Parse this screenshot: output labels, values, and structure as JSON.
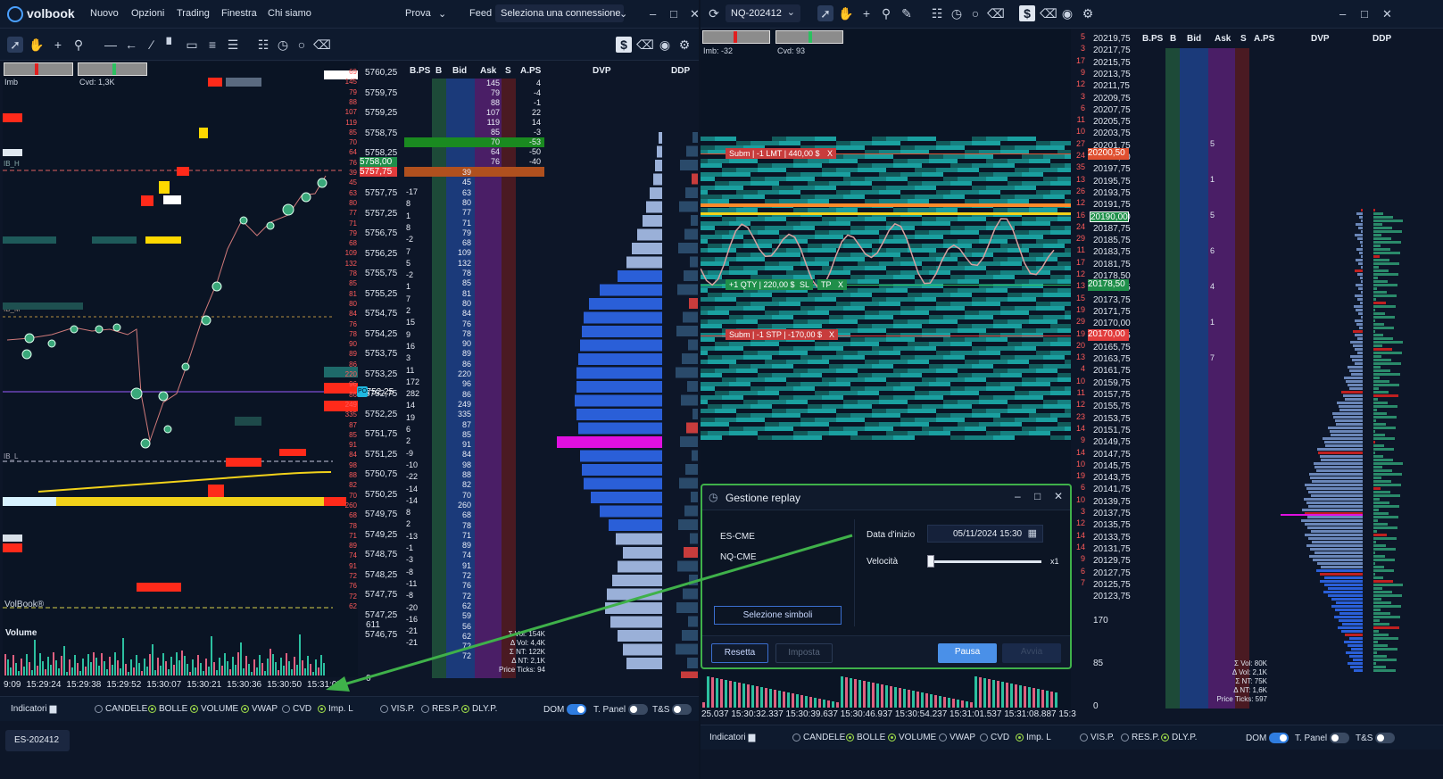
{
  "app": {
    "brand": "volbook",
    "menu": [
      "Nuovo",
      "Opzioni",
      "Trading",
      "Finestra",
      "Chi siamo"
    ],
    "profile": "Prova",
    "feed_label": "Feed",
    "connection": "Seleziona una connessione"
  },
  "left": {
    "symbol_tab": "ES-202412",
    "imb_label": "Imb",
    "cvd_label": "Cvd: 1,3K",
    "ib_labels": [
      "IB_H",
      "IB_M",
      "IB_L"
    ],
    "watermark": "VolBook®",
    "volume_label": "Volume",
    "time_axis": [
      "9:09",
      "15:29:24",
      "15:29:38",
      "15:29:52",
      "15:30:07",
      "15:30:21",
      "15:30:36",
      "15:30:50",
      "15:31:05"
    ],
    "volume_scale": [
      "611",
      "0"
    ],
    "headers": [
      "B.PS",
      "B",
      "Bid",
      "Ask",
      "S",
      "A.PS",
      "DVP",
      "DDP"
    ],
    "prices": [
      "5760,25",
      "5759,75",
      "5759,25",
      "5758,75",
      "5758,25",
      "5758,00",
      "5757,75",
      "5757,25",
      "5756,75",
      "5756,25",
      "5755,75",
      "5755,25",
      "5754,75",
      "5754,25",
      "5753,75",
      "5753,25",
      "5752,75",
      "5752,25",
      "5751,75",
      "5751,25",
      "5750,75",
      "5750,25",
      "5749,75",
      "5749,25",
      "5748,75",
      "5748,25",
      "5747,75",
      "5747,25",
      "5746,75"
    ],
    "current_price": "5758,00",
    "ask_price_hl": "5757,75",
    "poc_price": "5752,25",
    "stats": [
      "Σ Vol: 154K",
      "Δ Vol: 4,4K",
      "Σ NT: 122K",
      "Δ NT: 2,1K",
      "Price Ticks: 94"
    ],
    "ask_col": [
      "145",
      "79",
      "88",
      "107",
      "119",
      "85",
      "70",
      "64",
      "76"
    ],
    "aps_col": [
      "4",
      "-4",
      "-1",
      "22",
      "14",
      "-3",
      "-53",
      "-50",
      "-40"
    ],
    "bid_col": [
      "39",
      "45",
      "63",
      "80",
      "77",
      "71",
      "79",
      "68",
      "109",
      "132",
      "78",
      "85",
      "81",
      "80",
      "84",
      "76",
      "78",
      "90",
      "89",
      "86",
      "220",
      "96",
      "86",
      "249",
      "335",
      "87",
      "85",
      "91",
      "84",
      "98",
      "88",
      "82",
      "70",
      "260",
      "68",
      "78",
      "71",
      "89",
      "74",
      "91",
      "72",
      "76",
      "72",
      "62",
      "59",
      "56",
      "62",
      "72",
      "72"
    ],
    "bps_col": [
      "-17",
      "8",
      "1",
      "8",
      "-2",
      "7",
      "5",
      "-2",
      "1",
      "7",
      "2",
      "15",
      "9",
      "16",
      "3",
      "11",
      "172",
      "282",
      "14",
      "19",
      "6",
      "2",
      "-9",
      "-10",
      "-22",
      "-14",
      "-14",
      "8",
      "2",
      "-13",
      "-1",
      "-3",
      "-8",
      "-11",
      "-8",
      "-20",
      "-16",
      "-21",
      "-21"
    ],
    "side_vol": [
      "69",
      "145",
      "79",
      "88",
      "107",
      "119",
      "85",
      "70",
      "64",
      "76",
      "39",
      "45",
      "63",
      "80",
      "77",
      "71",
      "79",
      "68",
      "109",
      "132",
      "78",
      "85",
      "81",
      "80",
      "84",
      "76",
      "78",
      "90",
      "89",
      "86",
      "220",
      "96",
      "86",
      "249",
      "335",
      "87",
      "85",
      "91",
      "84",
      "98",
      "88",
      "82",
      "70",
      "260",
      "68",
      "78",
      "71",
      "89",
      "74",
      "91",
      "72",
      "76",
      "72",
      "62"
    ],
    "options": [
      "CANDELE",
      "BOLLE",
      "VOLUME",
      "VWAP",
      "CVD",
      "Imp. L",
      "VIS.P.",
      "RES.P.",
      "DLY.P."
    ],
    "indicators_label": "Indicatori",
    "dom_label": "DOM",
    "tpanel_label": "T. Panel",
    "ts_label": "T&S"
  },
  "right": {
    "symbol": "NQ-202412",
    "imb_label": "Imb: -32",
    "cvd_label": "Cvd: 93",
    "headers": [
      "B.PS",
      "B",
      "Bid",
      "Ask",
      "S",
      "A.PS",
      "DVP",
      "DDP"
    ],
    "prices": [
      "20219,75",
      "20217,75",
      "20215,75",
      "20213,75",
      "20211,75",
      "20209,75",
      "20207,75",
      "20205,75",
      "20203,75",
      "20201,75",
      "20200,50",
      "20197,75",
      "20195,75",
      "20193,75",
      "20191,75",
      "20190,00",
      "20187,75",
      "20185,75",
      "20183,75",
      "20181,75",
      "20178,50",
      "20175,75",
      "20173,75",
      "20171,75",
      "20170,00",
      "20167,75",
      "20165,75",
      "20163,75",
      "20161,75",
      "20159,75",
      "20157,75",
      "20155,75",
      "20153,75",
      "20151,75",
      "20149,75",
      "20147,75",
      "20145,75",
      "20143,75",
      "20141,75",
      "20139,75",
      "20137,75",
      "20135,75",
      "20133,75",
      "20131,75",
      "20129,75",
      "20127,75",
      "20125,75",
      "20123,75"
    ],
    "left_vols": [
      "5",
      "3",
      "17",
      "9",
      "12",
      "3",
      "6",
      "11",
      "10",
      "27",
      "24",
      "35",
      "13",
      "26",
      "12",
      "16",
      "24",
      "29",
      "11",
      "17",
      "12",
      "13",
      "15",
      "19",
      "29",
      "19",
      "20",
      "13",
      "4",
      "10",
      "11",
      "12",
      "23",
      "14",
      "9",
      "14",
      "10",
      "19",
      "6",
      "10",
      "3",
      "12",
      "14",
      "14",
      "9",
      "6",
      "7"
    ],
    "scale": [
      "170",
      "85",
      "0"
    ],
    "order_limit": "Subm | -1 LMT | 440,00 $",
    "order_stop": "Subm | -1 STP | -170,00 $",
    "order_qty": "+1 QTY | 220,00 $",
    "order_sl": "SL",
    "order_tp": "TP",
    "close_x": "X",
    "limit_price": "20200,50",
    "stop_price": "20170,00",
    "entry_price": "20178,50",
    "current_price": "20190,00",
    "stats": [
      "Σ Vol: 80K",
      "Δ Vol: 2,1K",
      "Σ NT: 75K",
      "Δ NT: 1,6K",
      "Price Ticks: 597"
    ],
    "time_axis": "25.037 15:30:32.337 15:30:39.637 15:30:46.937 15:30:54.237 15:31:01.537 15:31:08.887 15:31:16.187",
    "options": [
      "CANDELE",
      "BOLLE",
      "VOLUME",
      "VWAP",
      "CVD",
      "Imp. L",
      "VIS.P.",
      "RES.P.",
      "DLY.P."
    ],
    "indicators_label": "Indicatori",
    "dom_label": "DOM",
    "tpanel_label": "T. Panel",
    "ts_label": "T&S",
    "ladder_marks": [
      "5",
      "1",
      "5",
      "6",
      "4",
      "1",
      "7"
    ]
  },
  "dialog": {
    "title": "Gestione replay",
    "symbols": [
      "ES-CME",
      "NQ-CME"
    ],
    "start_label": "Data d'inizio",
    "start_value": "05/11/2024 15:30",
    "speed_label": "Velocità",
    "speed_value": "x1",
    "speed_level": 0.0,
    "select_btn": "Selezione simboli",
    "reset_btn": "Resetta",
    "set_btn": "Imposta",
    "pause_btn": "Pausa",
    "start_btn": "Avvia"
  },
  "colors": {
    "accent": "#2f7de0",
    "dialog_border": "#3fb14a",
    "sell": "#e23c3c",
    "buy": "#1f8f4a",
    "poc": "#e010e0",
    "vwap": "#f2d21a"
  }
}
